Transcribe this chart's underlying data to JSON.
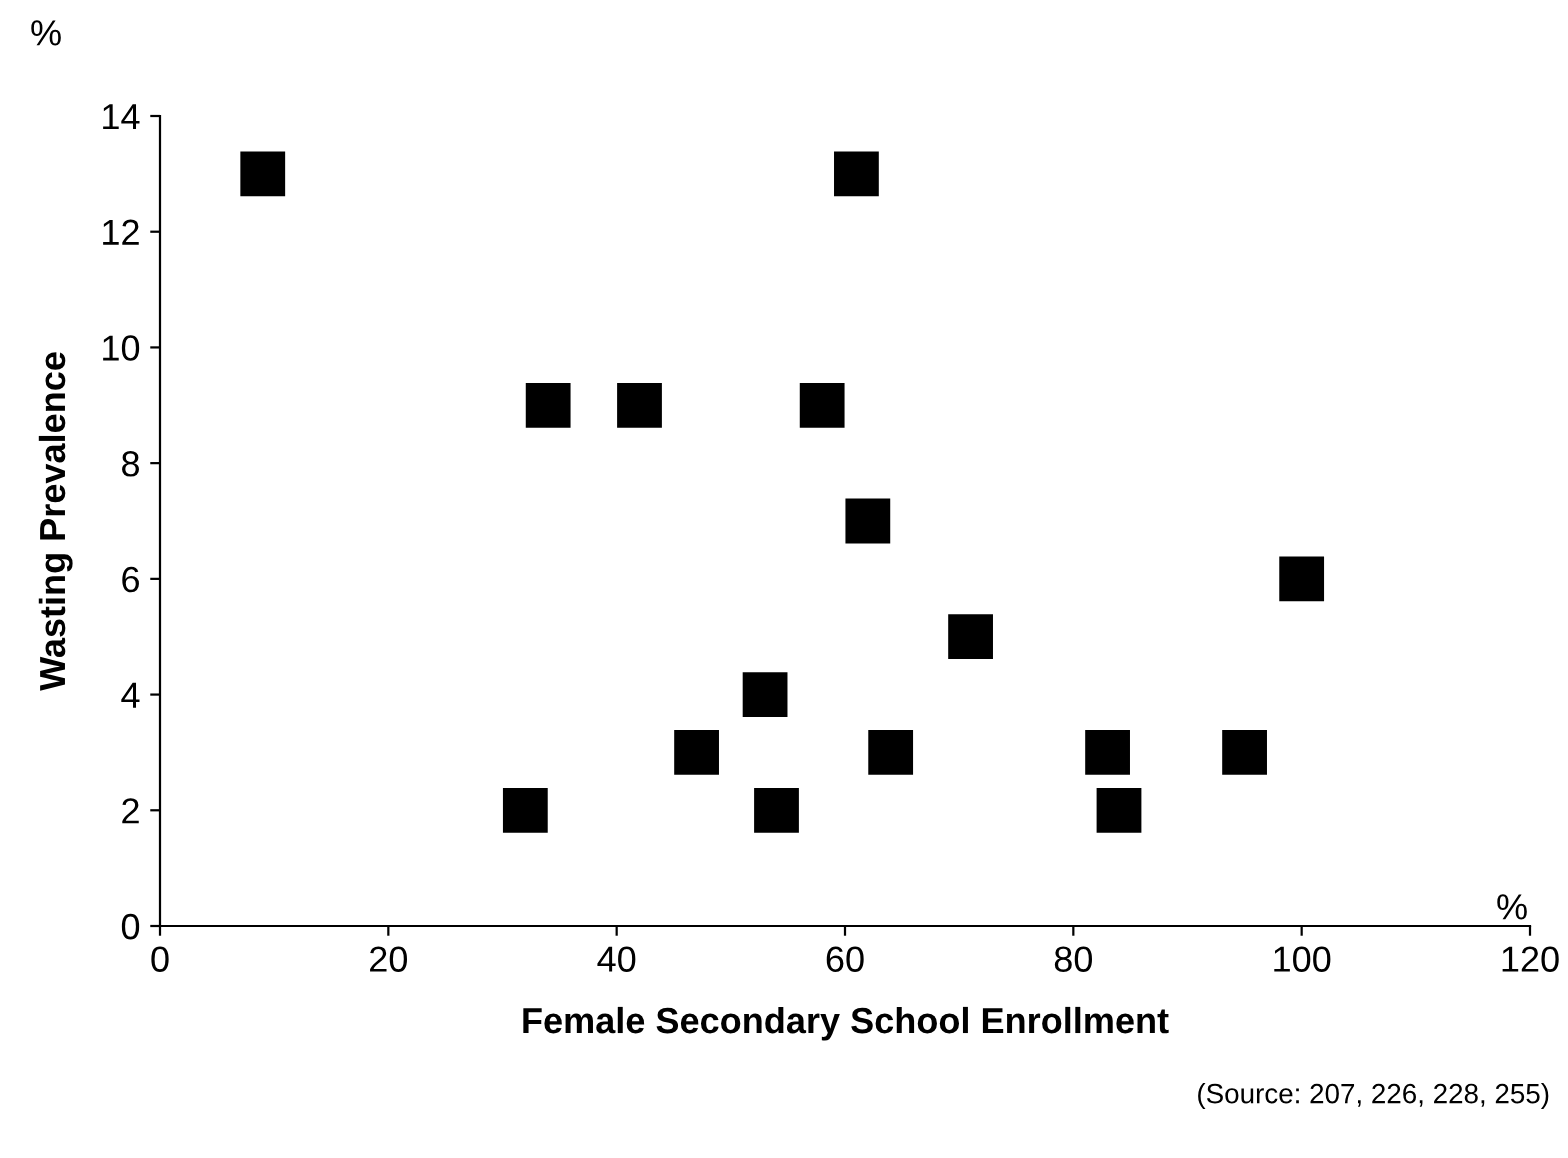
{
  "chart_data": {
    "type": "scatter",
    "xlabel": "Female Secondary School Enrollment",
    "ylabel": "Wasting Prevalence",
    "annotations": [
      "%",
      "%",
      "(Source: 207, 226, 228, 255)"
    ],
    "x": [
      9,
      61,
      34,
      42,
      58,
      62,
      100,
      71,
      53,
      47,
      64,
      83,
      95,
      32,
      54,
      84
    ],
    "values": [
      13,
      13,
      9,
      9,
      9,
      7,
      6,
      5,
      4,
      3,
      3,
      3,
      3,
      2,
      2,
      2
    ],
    "color": "#000000",
    "marker": "square",
    "xlim": [
      0,
      120
    ],
    "xticks": [
      0,
      20,
      40,
      60,
      80,
      100,
      120
    ],
    "ylim": [
      0,
      14
    ],
    "yticks": [
      0,
      2,
      4,
      6,
      8,
      10,
      12,
      14
    ],
    "grid": false,
    "legend": false
  }
}
